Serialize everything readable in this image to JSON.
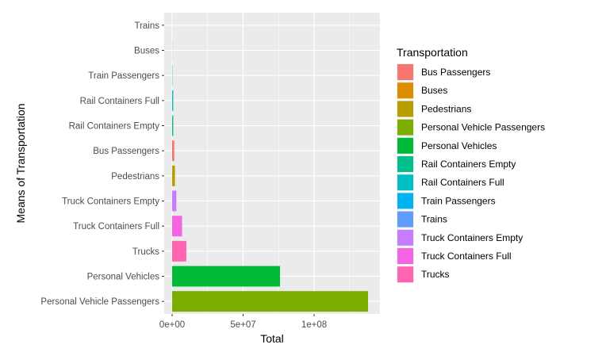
{
  "chart_data": {
    "type": "bar",
    "orientation": "horizontal",
    "title": "",
    "xlabel": "Total",
    "ylabel": "Means of Transportation",
    "xlim": [
      0,
      140000000
    ],
    "x_ticks": [
      {
        "value": 0,
        "label": "0e+00"
      },
      {
        "value": 50000000,
        "label": "5e+07"
      },
      {
        "value": 100000000,
        "label": "1e+08"
      }
    ],
    "categories": [
      "Personal Vehicle Passengers",
      "Personal Vehicles",
      "Trucks",
      "Truck Containers Full",
      "Truck Containers Empty",
      "Pedestrians",
      "Bus Passengers",
      "Rail Containers Empty",
      "Rail Containers Full",
      "Train Passengers",
      "Buses",
      "Trains"
    ],
    "values": [
      138000000,
      76000000,
      10000000,
      7000000,
      3000000,
      2000000,
      1500000,
      800000,
      800000,
      200000,
      100000,
      20000
    ],
    "grid": true,
    "legend": {
      "title": "Transportation",
      "placement": "right",
      "items": [
        {
          "label": "Bus Passengers",
          "color": "#F8766D"
        },
        {
          "label": "Buses",
          "color": "#DE8C00"
        },
        {
          "label": "Pedestrians",
          "color": "#B79F00"
        },
        {
          "label": "Personal Vehicle Passengers",
          "color": "#7CAE00"
        },
        {
          "label": "Personal Vehicles",
          "color": "#00BA38"
        },
        {
          "label": "Rail Containers Empty",
          "color": "#00C08B"
        },
        {
          "label": "Rail Containers Full",
          "color": "#00BFC4"
        },
        {
          "label": "Train Passengers",
          "color": "#00B4F0"
        },
        {
          "label": "Trains",
          "color": "#619CFF"
        },
        {
          "label": "Truck Containers Empty",
          "color": "#C77CFF"
        },
        {
          "label": "Truck Containers Full",
          "color": "#F564E3"
        },
        {
          "label": "Trucks",
          "color": "#FF64B0"
        }
      ]
    },
    "colors": {
      "panel_background": "#EBEBEB",
      "grid_major": "#FFFFFF"
    }
  }
}
